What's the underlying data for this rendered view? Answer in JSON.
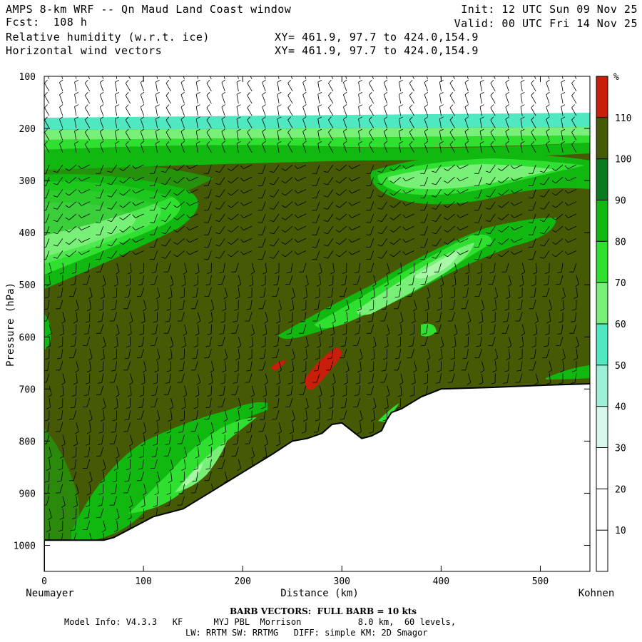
{
  "header": {
    "title": "AMPS 8-km WRF -- Qn Maud Land Coast window",
    "forecast": "Fcst:  108 h",
    "field1": "Relative humidity (w.r.t. ice)",
    "field2": "Horizontal wind vectors",
    "xy1": "XY= 461.9, 97.7 to 424.0,154.9",
    "xy2": "XY= 461.9, 97.7 to 424.0,154.9",
    "init": "Init: 12 UTC Sun 09 Nov 25",
    "valid": "Valid: 00 UTC Fri 14 Nov 25"
  },
  "footer": {
    "barb_note": "BARB VECTORS:  FULL BARB = 10 kts",
    "model_line1": "Model Info: V4.3.3   KF      MYJ PBL  Morrison           8.0 km,  60 levels,",
    "model_line2": "LW: RRTM SW: RRTMG   DIFF: simple KM: 2D Smagor"
  },
  "chart_data": {
    "type": "heatmap",
    "title": "Relative humidity (w.r.t. ice) cross-section with horizontal wind barbs",
    "xlabel": "Distance (km)",
    "ylabel": "Pressure (hPa)",
    "xlim": [
      0,
      550
    ],
    "ylim": [
      1050,
      100
    ],
    "x_ticks": [
      0,
      100,
      200,
      300,
      400,
      500
    ],
    "y_ticks": [
      100,
      200,
      300,
      400,
      500,
      600,
      700,
      800,
      900,
      1000
    ],
    "x_endpoint_labels": {
      "left": "Neumayer",
      "right": "Kohnen"
    },
    "colorbar": {
      "unit": "%",
      "levels": [
        10,
        20,
        30,
        40,
        50,
        60,
        70,
        80,
        90,
        100,
        110
      ],
      "colors": [
        "#ffffff",
        "#ffffff",
        "#ffffff",
        "#d8f8ee",
        "#9cf0d8",
        "#50e8c0",
        "#78f078",
        "#30e030",
        "#10b810",
        "#0a7a20",
        "#465a06",
        "#c81e0a"
      ]
    },
    "terrain_profile": {
      "x_km": [
        0,
        60,
        70,
        100,
        110,
        140,
        170,
        200,
        230,
        250,
        265,
        280,
        290,
        300,
        310,
        320,
        330,
        340,
        345,
        350,
        360,
        380,
        400,
        450,
        500,
        550
      ],
      "p_hpa": [
        990,
        990,
        985,
        955,
        945,
        930,
        895,
        860,
        825,
        800,
        795,
        785,
        768,
        765,
        780,
        795,
        790,
        780,
        760,
        745,
        738,
        715,
        700,
        697,
        693,
        690
      ]
    },
    "features": [
      {
        "name": "upper dry band",
        "level_pct": "20-40",
        "p_hpa": [
          100,
          190
        ]
      },
      {
        "name": "moist band left upper",
        "level_pct": "60-80",
        "x_km": [
          0,
          170
        ],
        "p_hpa": [
          290,
          500
        ]
      },
      {
        "name": "moist band right upper",
        "level_pct": "60-80",
        "x_km": [
          330,
          550
        ],
        "p_hpa": [
          240,
          320
        ]
      },
      {
        "name": "mid-level moist band",
        "level_pct": "60-80",
        "x_km": [
          240,
          430
        ],
        "p_hpa": [
          420,
          620
        ]
      },
      {
        "name": "supersaturation",
        "level_pct": ">110",
        "x_km": [
          225,
          300
        ],
        "p_hpa": [
          620,
          700
        ]
      },
      {
        "name": "low-level moist band",
        "level_pct": "60-90",
        "x_km": [
          70,
          370
        ],
        "p_hpa": [
          650,
          960
        ]
      }
    ]
  }
}
